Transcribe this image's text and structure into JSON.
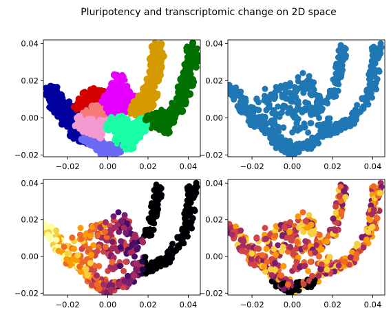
{
  "figure": {
    "title": "Pluripotency and transcriptomic change on 2D space"
  },
  "chart_data": [
    {
      "type": "scatter",
      "panel": "top-left",
      "title": "",
      "xlabel": "",
      "ylabel": "",
      "xlim": [
        -0.032,
        0.046
      ],
      "ylim": [
        -0.021,
        0.042
      ],
      "xticks": [
        "-0.02",
        "0.00",
        "0.02",
        "0.04"
      ],
      "yticks": [
        "-0.02",
        "0.00",
        "0.02",
        "0.04"
      ],
      "coloring": "cluster",
      "series": [
        {
          "color": "#00009c",
          "points": [
            [
              -0.028,
              0.014
            ],
            [
              -0.026,
              0.012
            ],
            [
              -0.027,
              0.008
            ],
            [
              -0.024,
              0.005
            ],
            [
              -0.022,
              0.002
            ],
            [
              -0.02,
              -0.001
            ],
            [
              -0.018,
              -0.004
            ],
            [
              -0.016,
              -0.007
            ],
            [
              -0.014,
              -0.009
            ],
            [
              -0.012,
              -0.011
            ],
            [
              -0.025,
              0.01
            ],
            [
              -0.021,
              0.006
            ],
            [
              -0.019,
              0.003
            ],
            [
              -0.017,
              0.0
            ],
            [
              -0.015,
              -0.003
            ],
            [
              -0.013,
              -0.006
            ],
            [
              -0.011,
              -0.008
            ],
            [
              -0.009,
              -0.012
            ]
          ]
        },
        {
          "color": "#6a6af5",
          "points": [
            [
              -0.008,
              -0.012
            ],
            [
              -0.006,
              -0.014
            ],
            [
              -0.004,
              -0.016
            ],
            [
              -0.002,
              -0.017
            ],
            [
              0.0,
              -0.018
            ],
            [
              0.002,
              -0.017
            ],
            [
              0.004,
              -0.016
            ],
            [
              -0.01,
              -0.01
            ]
          ]
        },
        {
          "color": "#d40000",
          "points": [
            [
              -0.012,
              0.008
            ],
            [
              -0.01,
              0.011
            ],
            [
              -0.008,
              0.013
            ],
            [
              -0.006,
              0.01
            ],
            [
              -0.004,
              0.012
            ],
            [
              -0.002,
              0.009
            ],
            [
              -0.014,
              0.006
            ],
            [
              -0.008,
              0.006
            ]
          ]
        },
        {
          "color": "#f57a7a",
          "points": [
            [
              -0.008,
              0.002
            ],
            [
              -0.006,
              0.004
            ],
            [
              -0.004,
              0.001
            ],
            [
              -0.002,
              0.003
            ],
            [
              0.0,
              0.0
            ],
            [
              -0.01,
              0.0
            ],
            [
              -0.006,
              -0.002
            ]
          ]
        },
        {
          "color": "#f59ad0",
          "points": [
            [
              -0.014,
              -0.002
            ],
            [
              -0.012,
              -0.004
            ],
            [
              -0.01,
              -0.006
            ],
            [
              -0.008,
              -0.004
            ],
            [
              -0.006,
              -0.008
            ],
            [
              -0.004,
              -0.006
            ],
            [
              -0.002,
              -0.004
            ]
          ]
        },
        {
          "color": "#e600ff",
          "points": [
            [
              0.0,
              0.01
            ],
            [
              0.002,
              0.014
            ],
            [
              0.004,
              0.018
            ],
            [
              0.006,
              0.021
            ],
            [
              0.008,
              0.016
            ],
            [
              0.01,
              0.012
            ],
            [
              0.012,
              0.008
            ],
            [
              0.004,
              0.008
            ],
            [
              0.002,
              0.004
            ],
            [
              0.008,
              0.006
            ],
            [
              0.006,
              0.012
            ],
            [
              0.014,
              0.01
            ]
          ]
        },
        {
          "color": "#1affa6",
          "points": [
            [
              0.002,
              -0.004
            ],
            [
              0.004,
              -0.002
            ],
            [
              0.006,
              -0.006
            ],
            [
              0.008,
              -0.003
            ],
            [
              0.01,
              -0.008
            ],
            [
              0.012,
              -0.004
            ],
            [
              0.014,
              -0.01
            ],
            [
              0.016,
              -0.006
            ],
            [
              0.018,
              -0.002
            ],
            [
              0.02,
              0.0
            ],
            [
              0.006,
              -0.012
            ],
            [
              0.01,
              -0.014
            ]
          ]
        },
        {
          "color": "#d49a00",
          "points": [
            [
              0.016,
              0.006
            ],
            [
              0.018,
              0.01
            ],
            [
              0.02,
              0.014
            ],
            [
              0.022,
              0.018
            ],
            [
              0.023,
              0.022
            ],
            [
              0.024,
              0.026
            ],
            [
              0.024,
              0.03
            ],
            [
              0.025,
              0.034
            ],
            [
              0.025,
              0.038
            ],
            [
              0.02,
              0.008
            ],
            [
              0.022,
              0.012
            ],
            [
              0.014,
              0.004
            ]
          ]
        },
        {
          "color": "#007000",
          "points": [
            [
              0.022,
              0.0
            ],
            [
              0.026,
              0.002
            ],
            [
              0.03,
              -0.002
            ],
            [
              0.032,
              0.002
            ],
            [
              0.034,
              0.006
            ],
            [
              0.036,
              0.01
            ],
            [
              0.038,
              0.014
            ],
            [
              0.039,
              0.018
            ],
            [
              0.04,
              0.022
            ],
            [
              0.041,
              0.026
            ],
            [
              0.042,
              0.03
            ],
            [
              0.042,
              0.034
            ],
            [
              0.042,
              0.038
            ],
            [
              0.028,
              -0.006
            ],
            [
              0.024,
              -0.004
            ]
          ]
        }
      ]
    },
    {
      "type": "scatter",
      "panel": "top-right",
      "title": "",
      "xlabel": "",
      "ylabel": "",
      "xlim": [
        -0.032,
        0.046
      ],
      "ylim": [
        -0.021,
        0.042
      ],
      "xticks": [
        "-0.02",
        "0.00",
        "0.02",
        "0.04"
      ],
      "yticks": [
        "-0.02",
        "0.00",
        "0.02",
        "0.04"
      ],
      "coloring": "single",
      "color": "#1f77b4"
    },
    {
      "type": "scatter",
      "panel": "bottom-left",
      "title": "",
      "xlabel": "",
      "ylabel": "",
      "xlim": [
        -0.032,
        0.046
      ],
      "ylim": [
        -0.021,
        0.042
      ],
      "xticks": [
        "-0.02",
        "0.00",
        "0.02",
        "0.04"
      ],
      "yticks": [
        "-0.02",
        "0.00",
        "0.02",
        "0.04"
      ],
      "coloring": "continuous",
      "colormap": "inferno",
      "gradient": "high-left-to-low-right"
    },
    {
      "type": "scatter",
      "panel": "bottom-right",
      "title": "",
      "xlabel": "",
      "ylabel": "",
      "xlim": [
        -0.032,
        0.046
      ],
      "ylim": [
        -0.021,
        0.042
      ],
      "xticks": [
        "-0.02",
        "0.00",
        "0.02",
        "0.04"
      ],
      "yticks": [
        "-0.02",
        "0.00",
        "0.02",
        "0.04"
      ],
      "coloring": "continuous",
      "colormap": "inferno",
      "gradient": "mixed"
    }
  ],
  "cloud_shape": {
    "note_points": "U-shaped point cloud shared by all four panels (data units)",
    "left_arm": [
      [
        -0.029,
        0.015
      ],
      [
        -0.027,
        0.012
      ],
      [
        -0.025,
        0.008
      ],
      [
        -0.022,
        0.004
      ],
      [
        -0.019,
        0.0
      ],
      [
        -0.016,
        -0.004
      ],
      [
        -0.012,
        -0.008
      ],
      [
        -0.008,
        -0.012
      ],
      [
        -0.004,
        -0.015
      ],
      [
        0.0,
        -0.017
      ],
      [
        0.004,
        -0.016
      ]
    ],
    "right_arm": [
      [
        0.004,
        -0.016
      ],
      [
        0.01,
        -0.013
      ],
      [
        0.016,
        -0.009
      ],
      [
        0.022,
        -0.005
      ],
      [
        0.028,
        -0.002
      ],
      [
        0.033,
        0.003
      ],
      [
        0.037,
        0.01
      ],
      [
        0.04,
        0.018
      ],
      [
        0.041,
        0.026
      ],
      [
        0.042,
        0.034
      ],
      [
        0.042,
        0.039
      ]
    ],
    "inner_arm": [
      [
        0.012,
        0.004
      ],
      [
        0.017,
        0.008
      ],
      [
        0.02,
        0.013
      ],
      [
        0.022,
        0.018
      ],
      [
        0.023,
        0.024
      ],
      [
        0.024,
        0.03
      ],
      [
        0.025,
        0.035
      ],
      [
        0.025,
        0.039
      ]
    ],
    "center_blob": [
      [
        -0.014,
        0.008
      ],
      [
        -0.01,
        0.012
      ],
      [
        -0.006,
        0.014
      ],
      [
        -0.002,
        0.012
      ],
      [
        0.002,
        0.016
      ],
      [
        0.006,
        0.021
      ],
      [
        0.008,
        0.016
      ],
      [
        0.01,
        0.01
      ],
      [
        -0.006,
        0.004
      ],
      [
        0.0,
        0.002
      ],
      [
        0.004,
        -0.004
      ],
      [
        -0.008,
        -0.004
      ],
      [
        -0.012,
        -0.002
      ],
      [
        0.006,
        0.006
      ],
      [
        0.012,
        0.0
      ],
      [
        0.016,
        -0.004
      ]
    ]
  }
}
